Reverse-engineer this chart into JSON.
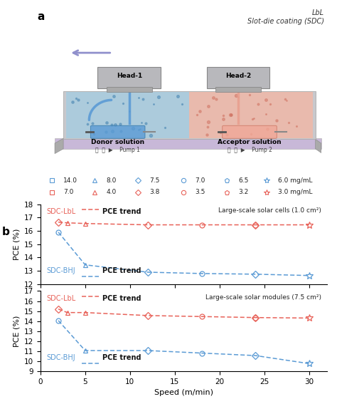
{
  "red_color": "#e8635a",
  "blue_color": "#5b9bd5",
  "top_plot": {
    "title": "Large-scale solar cells (1.0 cm²)",
    "ylabel": "PCE (%)",
    "ylim": [
      12,
      18
    ],
    "yticks": [
      12,
      13,
      14,
      15,
      16,
      17,
      18
    ],
    "red_x": [
      2,
      3,
      5,
      12,
      18,
      24,
      30
    ],
    "red_y": [
      16.65,
      16.6,
      16.55,
      16.45,
      16.45,
      16.45,
      16.45
    ],
    "blue_x": [
      2,
      5,
      12,
      18,
      24,
      30
    ],
    "blue_y": [
      15.9,
      13.45,
      12.9,
      12.8,
      12.75,
      12.65
    ],
    "red_markers": [
      "D",
      "^",
      "^",
      "D",
      "o",
      "D",
      "*"
    ],
    "red_extra_markers": [
      [
        "o",
        24
      ]
    ],
    "blue_markers": [
      "o",
      "^",
      "D",
      "o",
      "D",
      "*"
    ]
  },
  "bottom_plot": {
    "title": "Large-scale solar modules (7.5 cm²)",
    "ylabel": "PCE (%)",
    "xlabel": "Speed (m/min)",
    "ylim": [
      9,
      17
    ],
    "yticks": [
      9,
      10,
      11,
      12,
      13,
      14,
      15,
      16,
      17
    ],
    "red_x": [
      2,
      3,
      5,
      12,
      18,
      24,
      30
    ],
    "red_y": [
      15.2,
      14.85,
      14.85,
      14.55,
      14.45,
      14.35,
      14.3
    ],
    "blue_x": [
      2,
      5,
      12,
      18,
      24,
      30
    ],
    "blue_y": [
      14.05,
      11.05,
      11.05,
      10.8,
      10.55,
      9.75
    ],
    "red_markers": [
      "D",
      "^",
      "^",
      "D",
      "o",
      "D",
      "*"
    ],
    "red_extra_markers": [
      [
        "o",
        24
      ]
    ],
    "blue_markers": [
      "o",
      "^",
      "D",
      "o",
      "D",
      "*"
    ]
  },
  "legend_row1": [
    {
      "marker": "s",
      "color": "#5b9bd5",
      "label": "14.0"
    },
    {
      "marker": "^",
      "color": "#5b9bd5",
      "label": "8.0"
    },
    {
      "marker": "D",
      "color": "#5b9bd5",
      "label": "7.5"
    },
    {
      "marker": "o",
      "color": "#5b9bd5",
      "label": "7.0"
    },
    {
      "marker": "p",
      "color": "#5b9bd5",
      "label": "6.5"
    },
    {
      "marker": "*",
      "color": "#5b9bd5",
      "label": "6.0 mg/mL"
    }
  ],
  "legend_row2": [
    {
      "marker": "s",
      "color": "#e8635a",
      "label": "7.0"
    },
    {
      "marker": "^",
      "color": "#e8635a",
      "label": "4.0"
    },
    {
      "marker": "D",
      "color": "#e8635a",
      "label": "3.8"
    },
    {
      "marker": "o",
      "color": "#e8635a",
      "label": "3.5"
    },
    {
      "marker": "p",
      "color": "#e8635a",
      "label": "3.2"
    },
    {
      "marker": "*",
      "color": "#e8635a",
      "label": "3.0 mg/mL"
    }
  ],
  "schematic": {
    "substrate_color": "#c8c8cc",
    "substrate_edge": "#aaaaaa",
    "blue_fill": "#a8cce0",
    "pink_fill": "#f0b8a8",
    "head_color": "#b8b8bc",
    "arrow_color": "#9090cc",
    "blue_tube": "#5b9bd5",
    "pink_tube": "#e8a090"
  }
}
